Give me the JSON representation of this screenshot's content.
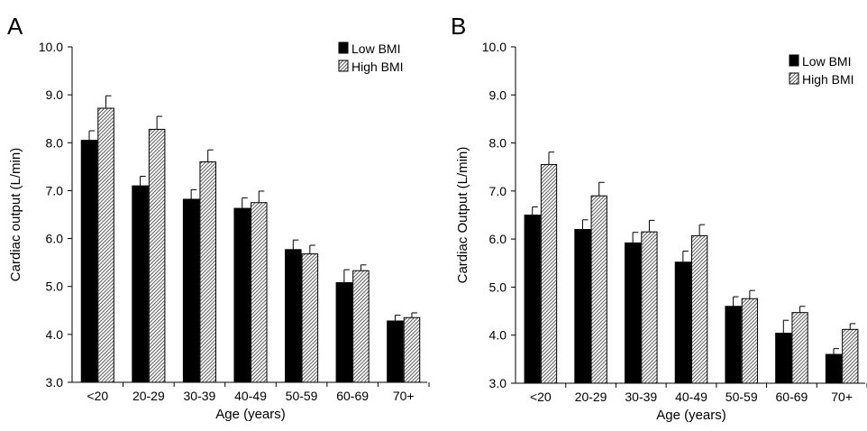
{
  "colors": {
    "low": "#000000",
    "high_hatch": "#666666",
    "high_bg": "#ffffff"
  },
  "chart_data": [
    {
      "panel": "A",
      "type": "bar",
      "xlabel": "Age (years)",
      "ylabel": "Cardiac output (L/min)",
      "ylim": [
        3.0,
        10.0
      ],
      "yticks": [
        "3.0",
        "4.0",
        "5.0",
        "6.0",
        "7.0",
        "8.0",
        "9.0",
        "10.0"
      ],
      "categories": [
        "<20",
        "20-29",
        "30-39",
        "40-49",
        "50-59",
        "60-69",
        "70+"
      ],
      "legend_position": "top-right",
      "series": [
        {
          "name": "Low BMI",
          "values": [
            8.05,
            7.1,
            6.82,
            6.63,
            5.77,
            5.08,
            4.28
          ],
          "err": [
            0.2,
            0.2,
            0.2,
            0.22,
            0.2,
            0.27,
            0.12
          ]
        },
        {
          "name": "High BMI",
          "values": [
            8.72,
            8.28,
            7.6,
            6.75,
            5.68,
            5.33,
            4.35
          ],
          "err": [
            0.26,
            0.27,
            0.25,
            0.24,
            0.18,
            0.12,
            0.1
          ]
        }
      ]
    },
    {
      "panel": "B",
      "type": "bar",
      "xlabel": "Age (years)",
      "ylabel": "Cardiac Output (L/min)",
      "ylim": [
        3.0,
        10.0
      ],
      "yticks": [
        "3.0",
        "4.0",
        "5.0",
        "6.0",
        "7.0",
        "8.0",
        "9.0",
        "10.0"
      ],
      "categories": [
        "<20",
        "20-29",
        "30-39",
        "40-49",
        "50-59",
        "60-69",
        "70+"
      ],
      "legend_position": "top-right",
      "series": [
        {
          "name": "Low BMI",
          "values": [
            6.5,
            6.2,
            5.92,
            5.52,
            4.6,
            4.04,
            3.6
          ],
          "err": [
            0.17,
            0.2,
            0.22,
            0.23,
            0.2,
            0.27,
            0.12
          ]
        },
        {
          "name": "High BMI",
          "values": [
            7.55,
            6.9,
            6.15,
            6.07,
            4.76,
            4.47,
            4.12
          ],
          "err": [
            0.26,
            0.28,
            0.24,
            0.23,
            0.17,
            0.13,
            0.12
          ]
        }
      ]
    }
  ]
}
